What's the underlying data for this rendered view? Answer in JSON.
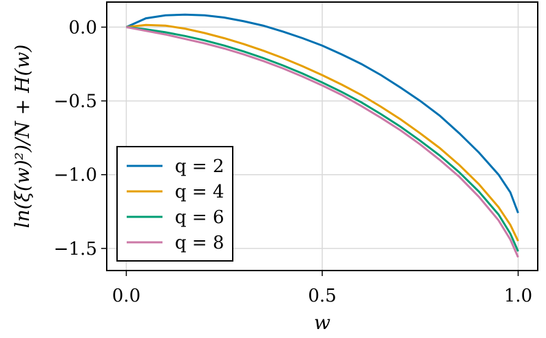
{
  "chart_data": {
    "type": "line",
    "xlabel": "w",
    "ylabel": "ln(ξ(w)²)/N + H(w)",
    "xlim": [
      -0.05,
      1.05
    ],
    "ylim": [
      -1.65,
      0.17
    ],
    "xticks": [
      0.0,
      0.5,
      1.0
    ],
    "xtick_labels": [
      "0.0",
      "0.5",
      "1.0"
    ],
    "yticks": [
      0.0,
      -0.5,
      -1.0,
      -1.5
    ],
    "ytick_labels": [
      "0.0",
      "−0.5",
      "−1.0",
      "−1.5"
    ],
    "grid": true,
    "legend_position": "bottom-left",
    "x": [
      0.0,
      0.05,
      0.1,
      0.15,
      0.2,
      0.25,
      0.3,
      0.35,
      0.4,
      0.45,
      0.5,
      0.55,
      0.6,
      0.65,
      0.7,
      0.75,
      0.8,
      0.85,
      0.9,
      0.95,
      0.98,
      1.0
    ],
    "series": [
      {
        "name": "q = 2",
        "color": "#0072b2",
        "values": [
          0.0,
          0.06,
          0.08,
          0.085,
          0.08,
          0.065,
          0.04,
          0.01,
          -0.03,
          -0.075,
          -0.125,
          -0.185,
          -0.25,
          -0.325,
          -0.41,
          -0.5,
          -0.6,
          -0.72,
          -0.85,
          -1.0,
          -1.12,
          -1.26
        ]
      },
      {
        "name": "q = 4",
        "color": "#e69f00",
        "values": [
          0.0,
          0.015,
          0.01,
          -0.01,
          -0.04,
          -0.075,
          -0.115,
          -0.16,
          -0.21,
          -0.265,
          -0.325,
          -0.39,
          -0.46,
          -0.54,
          -0.625,
          -0.72,
          -0.82,
          -0.935,
          -1.065,
          -1.22,
          -1.34,
          -1.45
        ]
      },
      {
        "name": "q = 6",
        "color": "#009e73",
        "values": [
          0.0,
          -0.015,
          -0.035,
          -0.06,
          -0.09,
          -0.125,
          -0.165,
          -0.21,
          -0.26,
          -0.315,
          -0.375,
          -0.44,
          -0.51,
          -0.59,
          -0.675,
          -0.77,
          -0.87,
          -0.985,
          -1.115,
          -1.27,
          -1.4,
          -1.52
        ]
      },
      {
        "name": "q = 8",
        "color": "#cc79a7",
        "values": [
          0.0,
          -0.025,
          -0.05,
          -0.08,
          -0.11,
          -0.145,
          -0.185,
          -0.23,
          -0.28,
          -0.335,
          -0.395,
          -0.46,
          -0.535,
          -0.615,
          -0.7,
          -0.795,
          -0.9,
          -1.015,
          -1.15,
          -1.31,
          -1.44,
          -1.56
        ]
      }
    ]
  }
}
